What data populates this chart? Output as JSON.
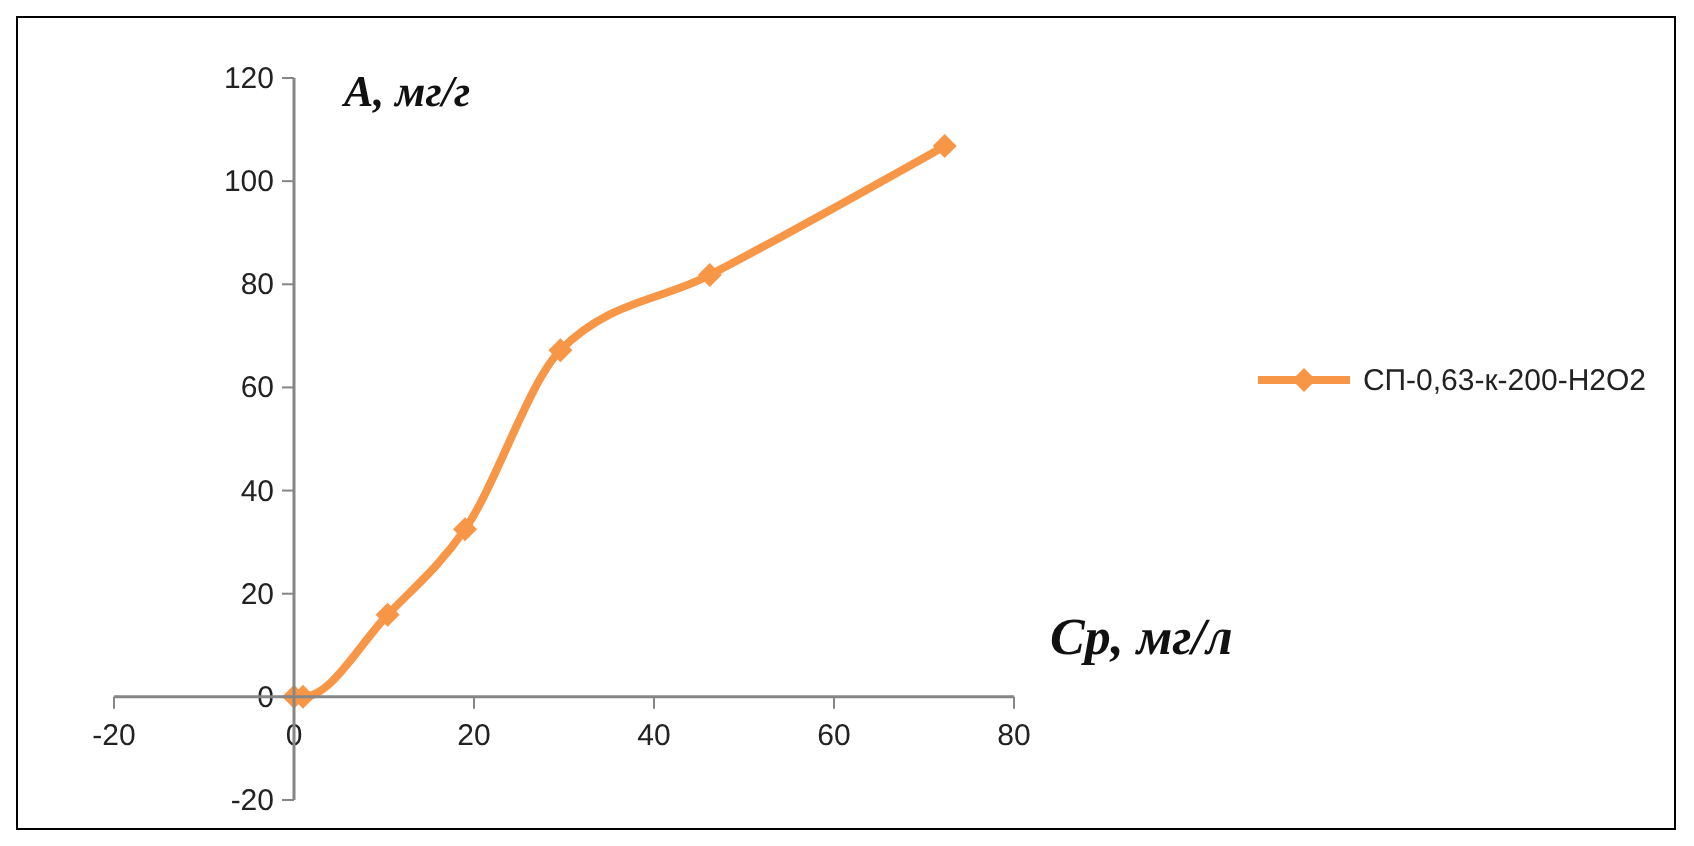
{
  "chart_data": {
    "type": "line",
    "xlabel": "Ср, мг/л",
    "ylabel": "A, мг/г",
    "x": [
      0,
      1,
      10.4,
      19,
      29.6,
      46.2,
      72.3
    ],
    "series": [
      {
        "name": "СП-0,63-к-200-H2O2",
        "color": "#f79646",
        "values": [
          0,
          0,
          15.9,
          32.5,
          67.2,
          81.8,
          106.8
        ]
      }
    ],
    "xlim": [
      -20,
      80
    ],
    "xticks": [
      -20,
      0,
      20,
      40,
      60,
      80
    ],
    "ylim": [
      -20,
      120
    ],
    "yticks": [
      -20,
      0,
      20,
      40,
      60,
      80,
      100,
      120
    ],
    "grid": false,
    "legend": "right",
    "marker": "diamond",
    "line_style": "solid"
  }
}
